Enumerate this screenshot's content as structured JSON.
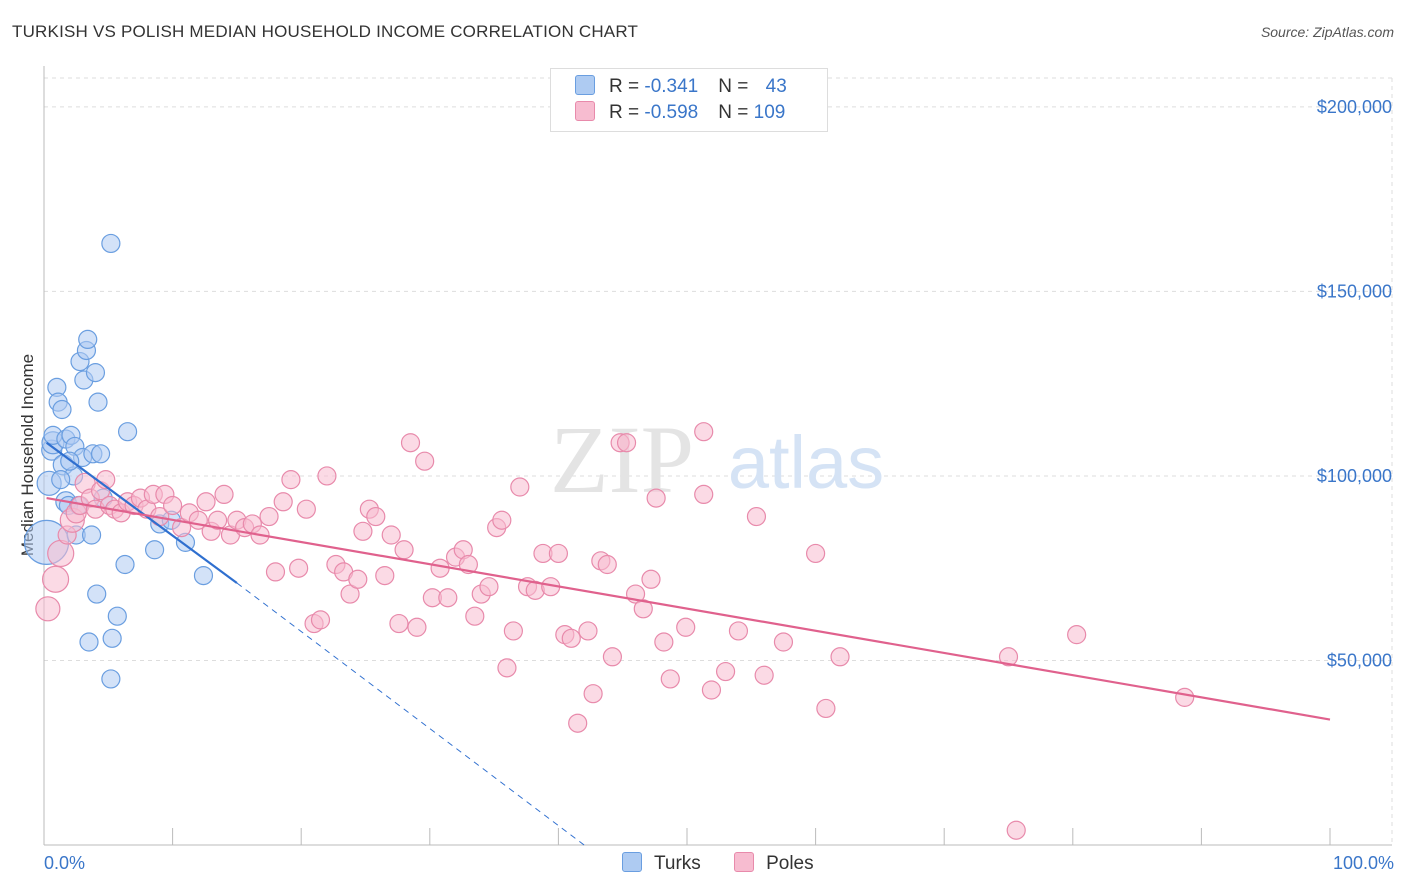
{
  "title": "TURKISH VS POLISH MEDIAN HOUSEHOLD INCOME CORRELATION CHART",
  "source": "Source: ZipAtlas.com",
  "watermark": {
    "zip": "ZIP",
    "atlas": "atlas"
  },
  "legend_top": {
    "rows": [
      {
        "r_label": "R = ",
        "r_value": "-0.341",
        "n_label": "N = ",
        "n_value": "43"
      },
      {
        "r_label": "R = ",
        "r_value": "-0.598",
        "n_label": "N = ",
        "n_value": "109"
      }
    ]
  },
  "legend_bottom": {
    "turks": "Turks",
    "poles": "Poles"
  },
  "colors": {
    "turks_fill": "#aecbf2",
    "turks_stroke": "#6a9ee0",
    "turks_line": "#2f6fcf",
    "poles_fill": "#f7bcd0",
    "poles_stroke": "#e88aab",
    "poles_line": "#e0618d",
    "grid": "#dddddd",
    "axis_text": "#3a76c9"
  },
  "chart_data": {
    "type": "scatter",
    "title": "TURKISH VS POLISH MEDIAN HOUSEHOLD INCOME CORRELATION CHART",
    "xlabel": "",
    "ylabel": "Median Household Income",
    "xlim": [
      0,
      100
    ],
    "ylim": [
      0,
      210000
    ],
    "x_tick_labels": [
      "0.0%",
      "100.0%"
    ],
    "y_ticks": [
      50000,
      100000,
      150000,
      200000
    ],
    "y_tick_labels": [
      "$50,000",
      "$100,000",
      "$150,000",
      "$200,000"
    ],
    "series": [
      {
        "name": "Turks",
        "r": -0.341,
        "n": 43,
        "trend": {
          "x0": 0.2,
          "y0": 109000,
          "x1": 15,
          "y1": 71000,
          "dash_to_x": 42,
          "dash_to_y": 0
        },
        "points": [
          [
            0.2,
            82000,
            22
          ],
          [
            0.4,
            98000,
            12
          ],
          [
            0.6,
            107000,
            10
          ],
          [
            0.7,
            109000,
            11
          ],
          [
            0.7,
            111000,
            9
          ],
          [
            1.0,
            124000,
            9
          ],
          [
            1.1,
            120000,
            9
          ],
          [
            1.4,
            118000,
            9
          ],
          [
            1.5,
            103000,
            10
          ],
          [
            1.7,
            110000,
            9
          ],
          [
            1.7,
            93000,
            10
          ],
          [
            1.9,
            92000,
            9
          ],
          [
            2.1,
            111000,
            9
          ],
          [
            2.3,
            100000,
            9
          ],
          [
            2.4,
            108000,
            9
          ],
          [
            2.5,
            84000,
            9
          ],
          [
            2.7,
            92000,
            9
          ],
          [
            2.8,
            131000,
            9
          ],
          [
            3.0,
            105000,
            9
          ],
          [
            3.1,
            126000,
            9
          ],
          [
            3.3,
            134000,
            9
          ],
          [
            3.4,
            137000,
            9
          ],
          [
            3.5,
            55000,
            9
          ],
          [
            3.7,
            84000,
            9
          ],
          [
            3.8,
            106000,
            9
          ],
          [
            4.0,
            128000,
            9
          ],
          [
            4.1,
            68000,
            9
          ],
          [
            4.2,
            120000,
            9
          ],
          [
            4.4,
            106000,
            9
          ],
          [
            4.6,
            94000,
            9
          ],
          [
            5.2,
            163000,
            9
          ],
          [
            5.2,
            45000,
            9
          ],
          [
            5.3,
            56000,
            9
          ],
          [
            5.7,
            62000,
            9
          ],
          [
            6.3,
            76000,
            9
          ],
          [
            6.5,
            112000,
            9
          ],
          [
            8.6,
            80000,
            9
          ],
          [
            9.0,
            87000,
            9
          ],
          [
            9.9,
            88000,
            9
          ],
          [
            11.0,
            82000,
            9
          ],
          [
            12.4,
            73000,
            9
          ],
          [
            2.0,
            104000,
            9
          ],
          [
            1.3,
            99000,
            9
          ]
        ]
      },
      {
        "name": "Poles",
        "r": -0.598,
        "n": 109,
        "trend": {
          "x0": 0.2,
          "y0": 94000,
          "x1": 100,
          "y1": 34000
        },
        "points": [
          [
            0.3,
            64000,
            12
          ],
          [
            0.9,
            72000,
            13
          ],
          [
            1.3,
            79000,
            13
          ],
          [
            1.8,
            84000,
            9
          ],
          [
            2.2,
            88000,
            12
          ],
          [
            2.5,
            90000,
            10
          ],
          [
            2.8,
            92000,
            9
          ],
          [
            3.2,
            98000,
            10
          ],
          [
            3.6,
            94000,
            9
          ],
          [
            4.0,
            91000,
            9
          ],
          [
            4.4,
            96000,
            9
          ],
          [
            4.8,
            99000,
            9
          ],
          [
            5.1,
            92000,
            9
          ],
          [
            5.5,
            91000,
            9
          ],
          [
            6.0,
            90000,
            9
          ],
          [
            6.5,
            93000,
            9
          ],
          [
            7.0,
            92000,
            9
          ],
          [
            7.5,
            94000,
            9
          ],
          [
            8.0,
            91000,
            9
          ],
          [
            8.5,
            95000,
            9
          ],
          [
            9.0,
            89000,
            9
          ],
          [
            9.4,
            95000,
            9
          ],
          [
            10.0,
            92000,
            9
          ],
          [
            10.7,
            86000,
            9
          ],
          [
            11.3,
            90000,
            9
          ],
          [
            12.0,
            88000,
            9
          ],
          [
            12.6,
            93000,
            9
          ],
          [
            13.0,
            85000,
            9
          ],
          [
            13.5,
            88000,
            9
          ],
          [
            14.0,
            95000,
            9
          ],
          [
            14.5,
            84000,
            9
          ],
          [
            15.0,
            88000,
            9
          ],
          [
            15.6,
            86000,
            9
          ],
          [
            16.2,
            87000,
            9
          ],
          [
            16.8,
            84000,
            9
          ],
          [
            17.5,
            89000,
            9
          ],
          [
            18.0,
            74000,
            9
          ],
          [
            18.6,
            93000,
            9
          ],
          [
            19.2,
            99000,
            9
          ],
          [
            19.8,
            75000,
            9
          ],
          [
            20.4,
            91000,
            9
          ],
          [
            21.0,
            60000,
            9
          ],
          [
            21.5,
            61000,
            9
          ],
          [
            22.0,
            100000,
            9
          ],
          [
            22.7,
            76000,
            9
          ],
          [
            23.3,
            74000,
            9
          ],
          [
            23.8,
            68000,
            9
          ],
          [
            24.4,
            72000,
            9
          ],
          [
            24.8,
            85000,
            9
          ],
          [
            25.3,
            91000,
            9
          ],
          [
            25.8,
            89000,
            9
          ],
          [
            26.5,
            73000,
            9
          ],
          [
            27.0,
            84000,
            9
          ],
          [
            27.6,
            60000,
            9
          ],
          [
            28.0,
            80000,
            9
          ],
          [
            28.5,
            109000,
            9
          ],
          [
            29.0,
            59000,
            9
          ],
          [
            29.6,
            104000,
            9
          ],
          [
            30.2,
            67000,
            9
          ],
          [
            30.8,
            75000,
            9
          ],
          [
            31.4,
            67000,
            9
          ],
          [
            32.0,
            78000,
            9
          ],
          [
            32.6,
            80000,
            9
          ],
          [
            33.0,
            76000,
            9
          ],
          [
            33.5,
            62000,
            9
          ],
          [
            34.0,
            68000,
            9
          ],
          [
            34.6,
            70000,
            9
          ],
          [
            35.2,
            86000,
            9
          ],
          [
            35.6,
            88000,
            9
          ],
          [
            36.0,
            48000,
            9
          ],
          [
            36.5,
            58000,
            9
          ],
          [
            37.0,
            97000,
            9
          ],
          [
            37.6,
            70000,
            9
          ],
          [
            38.2,
            69000,
            9
          ],
          [
            38.8,
            79000,
            9
          ],
          [
            39.4,
            70000,
            9
          ],
          [
            40.0,
            79000,
            9
          ],
          [
            40.5,
            57000,
            9
          ],
          [
            41.0,
            56000,
            9
          ],
          [
            41.5,
            33000,
            9
          ],
          [
            42.3,
            58000,
            9
          ],
          [
            42.7,
            41000,
            9
          ],
          [
            43.3,
            77000,
            9
          ],
          [
            43.8,
            76000,
            9
          ],
          [
            44.2,
            51000,
            9
          ],
          [
            44.8,
            109000,
            9
          ],
          [
            45.3,
            109000,
            9
          ],
          [
            46.0,
            68000,
            9
          ],
          [
            46.6,
            64000,
            9
          ],
          [
            47.2,
            72000,
            9
          ],
          [
            47.6,
            94000,
            9
          ],
          [
            48.2,
            55000,
            9
          ],
          [
            48.7,
            45000,
            9
          ],
          [
            49.9,
            59000,
            9
          ],
          [
            51.3,
            112000,
            9
          ],
          [
            51.3,
            95000,
            9
          ],
          [
            51.9,
            42000,
            9
          ],
          [
            53.0,
            47000,
            9
          ],
          [
            54.0,
            58000,
            9
          ],
          [
            55.4,
            89000,
            9
          ],
          [
            56.0,
            46000,
            9
          ],
          [
            57.5,
            55000,
            9
          ],
          [
            60.0,
            79000,
            9
          ],
          [
            60.8,
            37000,
            9
          ],
          [
            61.9,
            51000,
            9
          ],
          [
            75.0,
            51000,
            9
          ],
          [
            75.6,
            4000,
            9
          ],
          [
            80.3,
            57000,
            9
          ],
          [
            88.7,
            40000,
            9
          ]
        ]
      }
    ]
  }
}
